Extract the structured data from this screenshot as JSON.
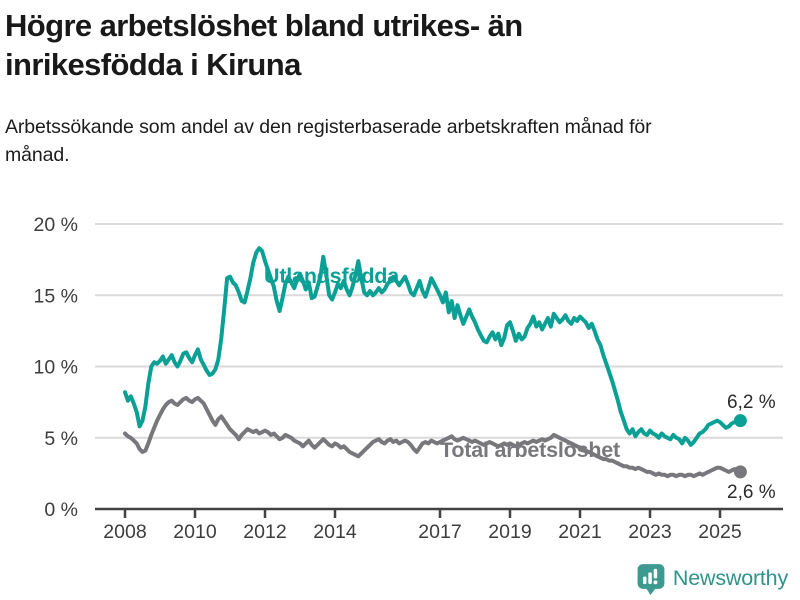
{
  "header": {
    "title_line1": "Högre arbetslöshet bland utrikes- än",
    "title_line2": "inrikesfödda i Kiruna",
    "subtitle": "Arbetssökande som andel av den registerbaserade arbetskraften månad för månad."
  },
  "footer": {
    "brand": "Newsworthy"
  },
  "chart_data": {
    "type": "line",
    "unit": "%",
    "frequency": "monthly",
    "start": "2008-01",
    "ylim": [
      0,
      20
    ],
    "grid": "horizontal",
    "y_ticks": [
      {
        "value": 0,
        "label": "0 %"
      },
      {
        "value": 5,
        "label": "5 %"
      },
      {
        "value": 10,
        "label": "10 %"
      },
      {
        "value": 15,
        "label": "15 %"
      },
      {
        "value": 20,
        "label": "20 %"
      }
    ],
    "x_ticks": [
      {
        "year": 2008,
        "label": "2008"
      },
      {
        "year": 2010,
        "label": "2010"
      },
      {
        "year": 2012,
        "label": "2012"
      },
      {
        "year": 2014,
        "label": "2014"
      },
      {
        "year": 2017,
        "label": "2017"
      },
      {
        "year": 2019,
        "label": "2019"
      },
      {
        "year": 2021,
        "label": "2021"
      },
      {
        "year": 2023,
        "label": "2023"
      },
      {
        "year": 2025,
        "label": "2025"
      }
    ],
    "series": [
      {
        "name": "Utlandsfödda",
        "color": "#0aa096",
        "end_label": "6,2 %",
        "end_value": 6.2,
        "values": [
          8.2,
          7.6,
          7.9,
          7.4,
          6.8,
          5.8,
          6.2,
          7.2,
          8.8,
          10.0,
          10.3,
          10.2,
          10.4,
          10.7,
          10.2,
          10.5,
          10.8,
          10.3,
          10.0,
          10.4,
          10.9,
          11.0,
          10.6,
          10.3,
          10.8,
          11.2,
          10.5,
          10.1,
          9.7,
          9.4,
          9.5,
          9.8,
          10.5,
          12.0,
          14.0,
          16.2,
          16.3,
          15.9,
          15.7,
          15.2,
          14.6,
          14.5,
          15.3,
          16.2,
          17.3,
          18.0,
          18.3,
          18.1,
          17.4,
          16.8,
          16.2,
          15.6,
          14.6,
          13.9,
          14.8,
          15.8,
          16.3,
          15.9,
          15.5,
          16.1,
          16.5,
          16.0,
          15.4,
          15.9,
          14.8,
          14.9,
          15.6,
          16.3,
          17.7,
          16.4,
          15.0,
          14.7,
          15.2,
          15.8,
          15.5,
          16.0,
          15.4,
          15.0,
          15.6,
          16.4,
          17.4,
          16.2,
          15.2,
          15.0,
          15.3,
          15.0,
          15.2,
          15.5,
          15.2,
          15.4,
          15.8,
          16.0,
          16.3,
          16.0,
          15.7,
          16.0,
          16.3,
          15.8,
          15.2,
          15.0,
          15.5,
          16.0,
          15.3,
          14.9,
          15.5,
          16.2,
          15.8,
          15.4,
          15.0,
          14.5,
          15.2,
          13.8,
          14.6,
          13.4,
          14.3,
          13.6,
          13.0,
          13.5,
          14.0,
          13.5,
          13.1,
          12.6,
          12.2,
          11.8,
          11.7,
          12.1,
          12.4,
          11.9,
          12.3,
          11.5,
          12.0,
          12.9,
          13.1,
          12.5,
          11.8,
          12.3,
          11.9,
          12.1,
          12.7,
          13.0,
          13.5,
          12.8,
          13.1,
          12.6,
          13.0,
          13.4,
          12.8,
          13.7,
          13.4,
          13.1,
          13.3,
          13.6,
          13.2,
          13.0,
          13.4,
          13.2,
          13.5,
          13.3,
          13.1,
          12.7,
          13.0,
          12.5,
          11.9,
          11.5,
          10.8,
          10.2,
          9.6,
          9.0,
          8.3,
          7.6,
          6.8,
          6.2,
          5.6,
          5.3,
          5.6,
          5.1,
          5.4,
          5.6,
          5.3,
          5.2,
          5.5,
          5.3,
          5.2,
          5.0,
          5.3,
          5.1,
          5.0,
          4.9,
          5.2,
          5.0,
          4.9,
          4.6,
          5.0,
          4.8,
          4.5,
          4.7,
          5.0,
          5.3,
          5.4,
          5.6,
          5.9,
          6.0,
          6.1,
          6.2,
          6.1,
          5.9,
          5.7,
          5.8,
          6.0,
          6.1,
          6.2,
          6.2
        ]
      },
      {
        "name": "Total arbetslöshet",
        "color": "#78787c",
        "end_label": "2,6 %",
        "end_value": 2.6,
        "values": [
          5.3,
          5.1,
          5.0,
          4.8,
          4.6,
          4.2,
          4.0,
          4.1,
          4.6,
          5.2,
          5.7,
          6.2,
          6.6,
          7.0,
          7.3,
          7.5,
          7.6,
          7.4,
          7.3,
          7.5,
          7.7,
          7.8,
          7.6,
          7.5,
          7.7,
          7.8,
          7.6,
          7.4,
          7.0,
          6.6,
          6.2,
          5.9,
          6.3,
          6.5,
          6.2,
          5.9,
          5.6,
          5.4,
          5.2,
          4.9,
          5.2,
          5.4,
          5.6,
          5.5,
          5.4,
          5.5,
          5.3,
          5.4,
          5.5,
          5.4,
          5.2,
          5.3,
          5.1,
          4.9,
          5.0,
          5.2,
          5.1,
          5.0,
          4.8,
          4.7,
          4.6,
          4.4,
          4.6,
          4.8,
          4.5,
          4.3,
          4.5,
          4.7,
          4.9,
          4.7,
          4.5,
          4.4,
          4.6,
          4.5,
          4.3,
          4.4,
          4.2,
          4.0,
          3.9,
          3.8,
          3.7,
          3.9,
          4.1,
          4.3,
          4.5,
          4.7,
          4.8,
          4.9,
          4.7,
          4.6,
          4.8,
          4.9,
          4.7,
          4.8,
          4.6,
          4.7,
          4.8,
          4.7,
          4.5,
          4.2,
          4.0,
          4.3,
          4.6,
          4.7,
          4.6,
          4.8,
          4.7,
          4.6,
          4.7,
          4.8,
          4.9,
          5.0,
          5.1,
          4.9,
          4.8,
          4.9,
          5.0,
          4.9,
          4.8,
          4.7,
          4.8,
          4.7,
          4.6,
          4.5,
          4.6,
          4.7,
          4.6,
          4.5,
          4.4,
          4.5,
          4.6,
          4.5,
          4.6,
          4.5,
          4.4,
          4.5,
          4.6,
          4.7,
          4.6,
          4.7,
          4.8,
          4.7,
          4.8,
          4.9,
          4.8,
          4.9,
          5.0,
          5.2,
          5.1,
          5.0,
          4.9,
          4.8,
          4.7,
          4.6,
          4.5,
          4.4,
          4.3,
          4.2,
          4.1,
          4.0,
          3.9,
          3.8,
          3.7,
          3.6,
          3.5,
          3.5,
          3.4,
          3.4,
          3.3,
          3.2,
          3.1,
          3.0,
          3.0,
          2.9,
          2.9,
          2.8,
          2.9,
          2.8,
          2.7,
          2.6,
          2.6,
          2.5,
          2.4,
          2.5,
          2.4,
          2.4,
          2.3,
          2.4,
          2.4,
          2.3,
          2.4,
          2.4,
          2.3,
          2.4,
          2.4,
          2.3,
          2.4,
          2.5,
          2.4,
          2.5,
          2.6,
          2.7,
          2.8,
          2.9,
          2.9,
          2.8,
          2.7,
          2.6,
          2.7,
          2.8,
          2.7,
          2.6
        ]
      }
    ]
  }
}
